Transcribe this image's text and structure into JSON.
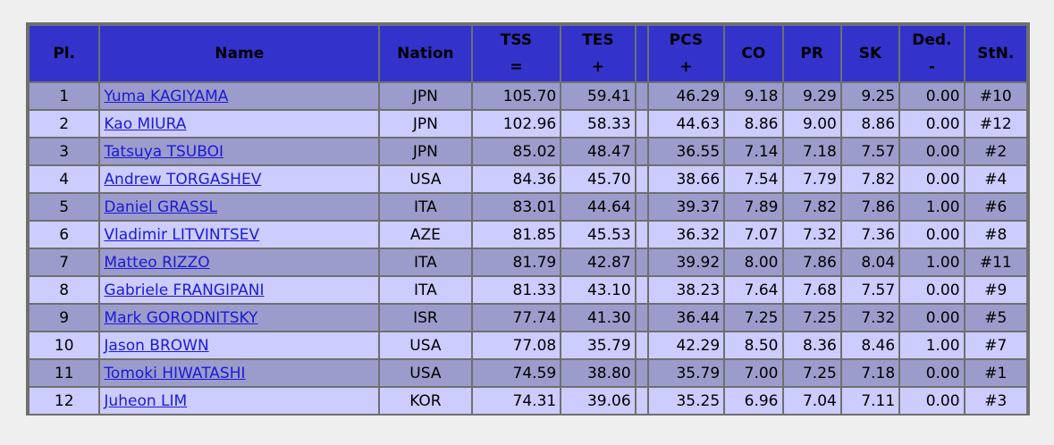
{
  "headers": {
    "pl": "Pl.",
    "name": "Name",
    "nation": "Nation",
    "tss_top": "TSS",
    "tss_bot": "=",
    "tes_top": "TES",
    "tes_bot": "+",
    "pcs_top": "PCS",
    "pcs_bot": "+",
    "co": "CO",
    "pr": "PR",
    "sk": "SK",
    "ded_top": "Ded.",
    "ded_bot": "-",
    "stn": "StN."
  },
  "rows": [
    {
      "pl": "1",
      "name": "Yuma KAGIYAMA",
      "nation": "JPN",
      "tss": "105.70",
      "tes": "59.41",
      "pcs": "46.29",
      "co": "9.18",
      "pr": "9.29",
      "sk": "9.25",
      "ded": "0.00",
      "stn": "#10"
    },
    {
      "pl": "2",
      "name": "Kao MIURA",
      "nation": "JPN",
      "tss": "102.96",
      "tes": "58.33",
      "pcs": "44.63",
      "co": "8.86",
      "pr": "9.00",
      "sk": "8.86",
      "ded": "0.00",
      "stn": "#12"
    },
    {
      "pl": "3",
      "name": "Tatsuya TSUBOI",
      "nation": "JPN",
      "tss": "85.02",
      "tes": "48.47",
      "pcs": "36.55",
      "co": "7.14",
      "pr": "7.18",
      "sk": "7.57",
      "ded": "0.00",
      "stn": "#2"
    },
    {
      "pl": "4",
      "name": "Andrew TORGASHEV",
      "nation": "USA",
      "tss": "84.36",
      "tes": "45.70",
      "pcs": "38.66",
      "co": "7.54",
      "pr": "7.79",
      "sk": "7.82",
      "ded": "0.00",
      "stn": "#4"
    },
    {
      "pl": "5",
      "name": "Daniel GRASSL",
      "nation": "ITA",
      "tss": "83.01",
      "tes": "44.64",
      "pcs": "39.37",
      "co": "7.89",
      "pr": "7.82",
      "sk": "7.86",
      "ded": "1.00",
      "stn": "#6"
    },
    {
      "pl": "6",
      "name": "Vladimir LITVINTSEV",
      "nation": "AZE",
      "tss": "81.85",
      "tes": "45.53",
      "pcs": "36.32",
      "co": "7.07",
      "pr": "7.32",
      "sk": "7.36",
      "ded": "0.00",
      "stn": "#8"
    },
    {
      "pl": "7",
      "name": "Matteo RIZZO",
      "nation": "ITA",
      "tss": "81.79",
      "tes": "42.87",
      "pcs": "39.92",
      "co": "8.00",
      "pr": "7.86",
      "sk": "8.04",
      "ded": "1.00",
      "stn": "#11"
    },
    {
      "pl": "8",
      "name": "Gabriele FRANGIPANI",
      "nation": "ITA",
      "tss": "81.33",
      "tes": "43.10",
      "pcs": "38.23",
      "co": "7.64",
      "pr": "7.68",
      "sk": "7.57",
      "ded": "0.00",
      "stn": "#9"
    },
    {
      "pl": "9",
      "name": "Mark GORODNITSKY",
      "nation": "ISR",
      "tss": "77.74",
      "tes": "41.30",
      "pcs": "36.44",
      "co": "7.25",
      "pr": "7.25",
      "sk": "7.32",
      "ded": "0.00",
      "stn": "#5"
    },
    {
      "pl": "10",
      "name": "Jason BROWN",
      "nation": "USA",
      "tss": "77.08",
      "tes": "35.79",
      "pcs": "42.29",
      "co": "8.50",
      "pr": "8.36",
      "sk": "8.46",
      "ded": "1.00",
      "stn": "#7"
    },
    {
      "pl": "11",
      "name": "Tomoki HIWATASHI",
      "nation": "USA",
      "tss": "74.59",
      "tes": "38.80",
      "pcs": "35.79",
      "co": "7.00",
      "pr": "7.25",
      "sk": "7.18",
      "ded": "0.00",
      "stn": "#1"
    },
    {
      "pl": "12",
      "name": "Juheon LIM",
      "nation": "KOR",
      "tss": "74.31",
      "tes": "39.06",
      "pcs": "35.25",
      "co": "6.96",
      "pr": "7.04",
      "sk": "7.11",
      "ded": "0.00",
      "stn": "#3"
    }
  ],
  "colors": {
    "header_bg": "#3333cc",
    "row_dark": "#9c9ccc",
    "row_light": "#ccccff",
    "link": "#1a1ad6",
    "border": "#6f6f6f"
  }
}
